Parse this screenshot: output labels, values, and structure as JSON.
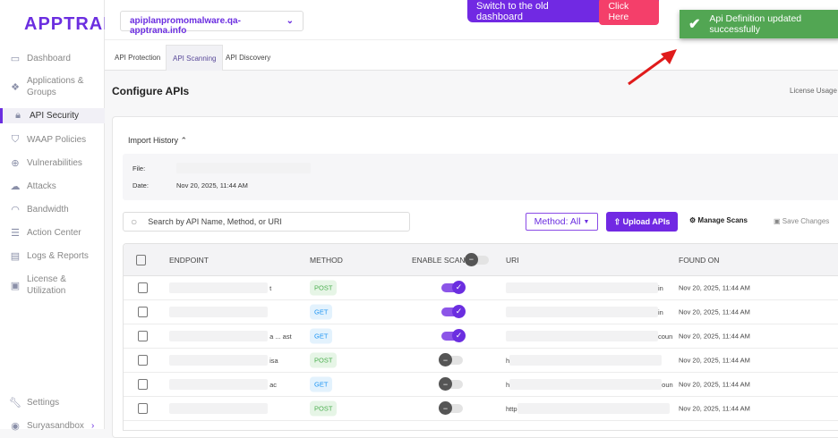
{
  "brand": "APPTRANA",
  "sidebar": {
    "items": [
      {
        "label": "Dashboard",
        "icon": "dashboard-icon"
      },
      {
        "label": "Applications & Groups",
        "icon": "applications-icon"
      },
      {
        "label": "API Security",
        "icon": "lock-icon",
        "active": true
      },
      {
        "label": "WAAP Policies",
        "icon": "shield-icon"
      },
      {
        "label": "Vulnerabilities",
        "icon": "bug-icon"
      },
      {
        "label": "Attacks",
        "icon": "cloud-alert-icon"
      },
      {
        "label": "Bandwidth",
        "icon": "gauge-icon"
      },
      {
        "label": "Action Center",
        "icon": "checklist-icon"
      },
      {
        "label": "Logs & Reports",
        "icon": "scroll-icon"
      },
      {
        "label": "License & Utilization",
        "icon": "id-card-icon"
      }
    ],
    "settings": "Settings",
    "user": "Suryasandbox"
  },
  "header": {
    "domain": "apiplanpromomalware.qa-apptrana.info",
    "banner_text": "Switch to the old dashboard",
    "banner_button": "Click Here"
  },
  "toast": {
    "message": "Api Definition updated successfully",
    "color": "#52a653"
  },
  "tabs": [
    "API Protection",
    "API Scanning",
    "API Discovery"
  ],
  "active_tab": "API Scanning",
  "page_title": "Configure APIs",
  "license_usage": "License Usage",
  "import_history": {
    "label": "Import History",
    "file_label": "File:",
    "date_label": "Date:",
    "date": "Nov 20, 2025, 11:44 AM"
  },
  "toolbar": {
    "search_placeholder": "Search by API Name, Method, or URI",
    "method_filter": "Method: All",
    "upload": "Upload APIs",
    "manage_scans": "Manage Scans",
    "save_changes": "Save Changes"
  },
  "table": {
    "columns": [
      "ENDPOINT",
      "METHOD",
      "ENABLE SCAN",
      "URI",
      "FOUND ON"
    ],
    "rows": [
      {
        "endpoint": "t",
        "method": "POST",
        "scan": true,
        "uri_start": "",
        "uri_end": "in",
        "found": "Nov 20, 2025, 11:44 AM"
      },
      {
        "endpoint": "",
        "method": "GET",
        "scan": true,
        "uri_start": "",
        "uri_end": "in",
        "found": "Nov 20, 2025, 11:44 AM"
      },
      {
        "endpoint": "a ... ast",
        "method": "GET",
        "scan": true,
        "uri_start": "",
        "uri_end": "coun",
        "found": "Nov 20, 2025, 11:44 AM"
      },
      {
        "endpoint": "isa",
        "method": "POST",
        "scan": false,
        "uri_start": "h",
        "uri_end": "",
        "found": "Nov 20, 2025, 11:44 AM"
      },
      {
        "endpoint": "ac",
        "method": "GET",
        "scan": false,
        "uri_start": "h",
        "uri_end": "oun",
        "found": "Nov 20, 2025, 11:44 AM"
      },
      {
        "endpoint": "",
        "method": "POST",
        "scan": false,
        "uri_start": "http",
        "uri_end": "",
        "found": "Nov 20, 2025, 11:44 AM"
      }
    ]
  },
  "colors": {
    "accent": "#7129e3",
    "banner_button": "#f43f6a",
    "toast": "#52a653"
  }
}
